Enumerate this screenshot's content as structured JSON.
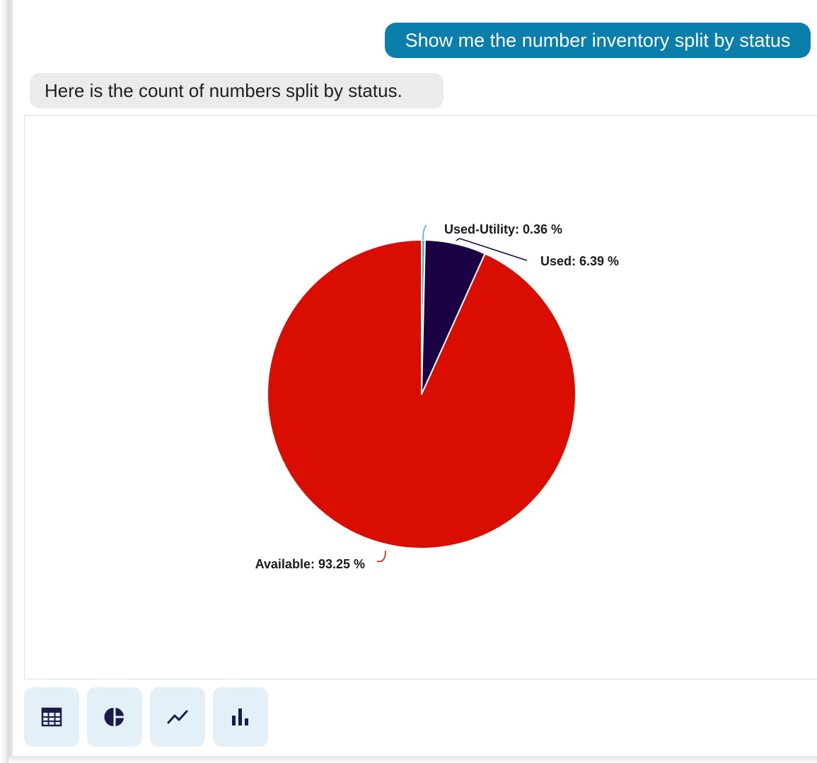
{
  "conversation": {
    "user_message": "Show me the number inventory split by status",
    "bot_message": "Here is the count of numbers split by status."
  },
  "chart_data": {
    "type": "pie",
    "slices": [
      {
        "name": "Used-Utility",
        "value": 0.36,
        "label": "Used-Utility: 0.36 %",
        "color": "#3ab0dc"
      },
      {
        "name": "Used",
        "value": 6.39,
        "label": "Used: 6.39 %",
        "color": "#1c0044"
      },
      {
        "name": "Available",
        "value": 93.25,
        "label": "Available: 93.25 %",
        "color": "#d90e00"
      }
    ],
    "start_angle": "12 o'clock",
    "direction": "clockwise",
    "legend": "none",
    "unit": "%"
  },
  "toolbar": {
    "buttons": [
      {
        "name": "table-view-button",
        "icon": "table-icon"
      },
      {
        "name": "pie-chart-view-button",
        "icon": "pie-chart-icon"
      },
      {
        "name": "line-chart-view-button",
        "icon": "line-chart-icon"
      },
      {
        "name": "bar-chart-view-button",
        "icon": "bar-chart-icon"
      }
    ],
    "icon_color": "#1c1b4d",
    "button_color": "#e3f0f8"
  },
  "theme": {
    "user_bubble_color": "#0a7fab",
    "bot_bubble_color": "#ebebeb"
  }
}
